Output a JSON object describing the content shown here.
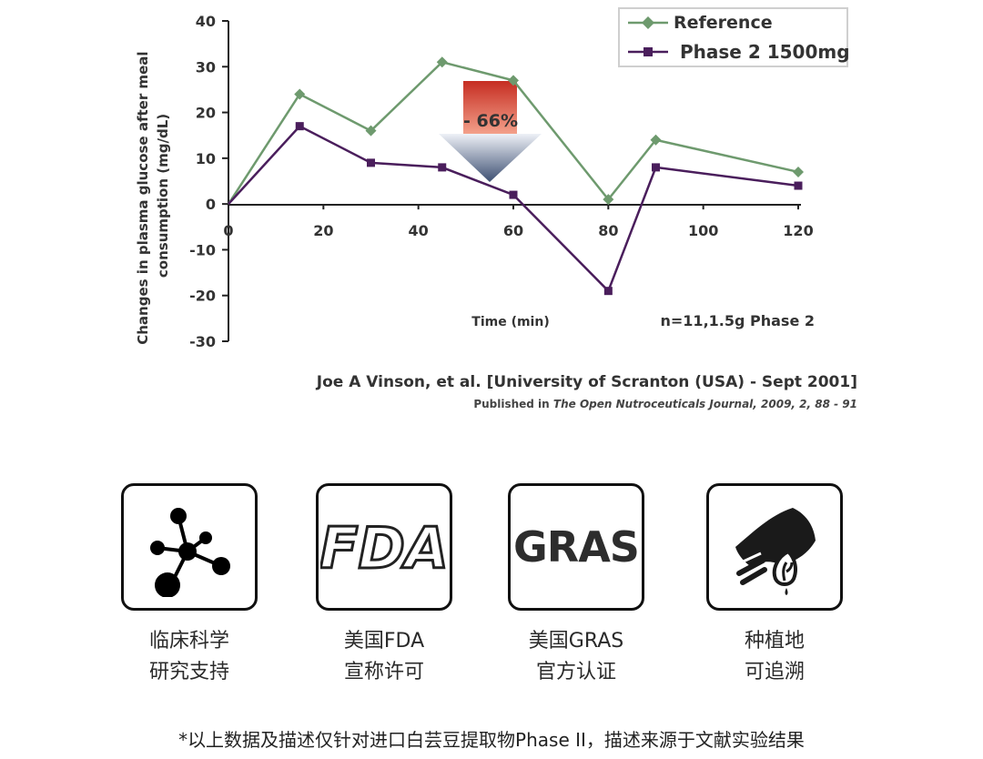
{
  "chart_data": {
    "type": "line",
    "title": "",
    "xlabel": "Time (min)",
    "ylabel": "Changes in plasma glucose after meal consumption (mg/dL)",
    "ylabel_lines": [
      "Changes in plasma glucose after meal",
      "consumption (mg/dL)"
    ],
    "xlim": [
      0,
      120
    ],
    "ylim": [
      -30,
      40
    ],
    "xticks": [
      0,
      20,
      40,
      60,
      80,
      100,
      120
    ],
    "yticks": [
      40,
      30,
      20,
      10,
      0,
      -10,
      -20,
      -30
    ],
    "grid": false,
    "legend": "top-right",
    "series": [
      {
        "name": "Reference",
        "color": "#6e9a6e",
        "marker": "diamond",
        "x": [
          0,
          15,
          30,
          45,
          60,
          80,
          90,
          120
        ],
        "y": [
          0,
          24,
          16,
          31,
          27,
          1,
          14,
          7
        ]
      },
      {
        "name": "Phase 2 1500mg",
        "color": "#4a1e5c",
        "marker": "square",
        "x": [
          0,
          15,
          30,
          45,
          60,
          80,
          90,
          120
        ],
        "y": [
          0,
          17,
          9,
          8,
          2,
          -19,
          8,
          4
        ]
      }
    ],
    "annotations": [
      {
        "text": "- 66%",
        "type": "down-arrow",
        "x": 55
      },
      {
        "text": "n=11,1.5g Phase 2"
      }
    ]
  },
  "citation": {
    "main": "Joe A Vinson, et al. [University of Scranton (USA) - Sept 2001]",
    "published_prefix": "Published in ",
    "journal": "The Open Nutroceuticals Journal, 2009, 2, 88 - 91"
  },
  "badges": [
    {
      "icon": "molecule-icon",
      "caption_line1": "临床科学",
      "caption_line2": "研究支持"
    },
    {
      "icon": "fda-logo-icon",
      "logo_text": "FDA",
      "caption_line1": "美国FDA",
      "caption_line2": "宣称许可"
    },
    {
      "icon": "gras-logo-icon",
      "logo_text": "GRAS",
      "caption_line1": "美国GRAS",
      "caption_line2": "官方认证"
    },
    {
      "icon": "hand-plant-icon",
      "caption_line1": "种植地",
      "caption_line2": "可追溯"
    }
  ],
  "footnote": "*以上数据及描述仅针对进口白芸豆提取物Phase II，描述来源于文献实验结果"
}
